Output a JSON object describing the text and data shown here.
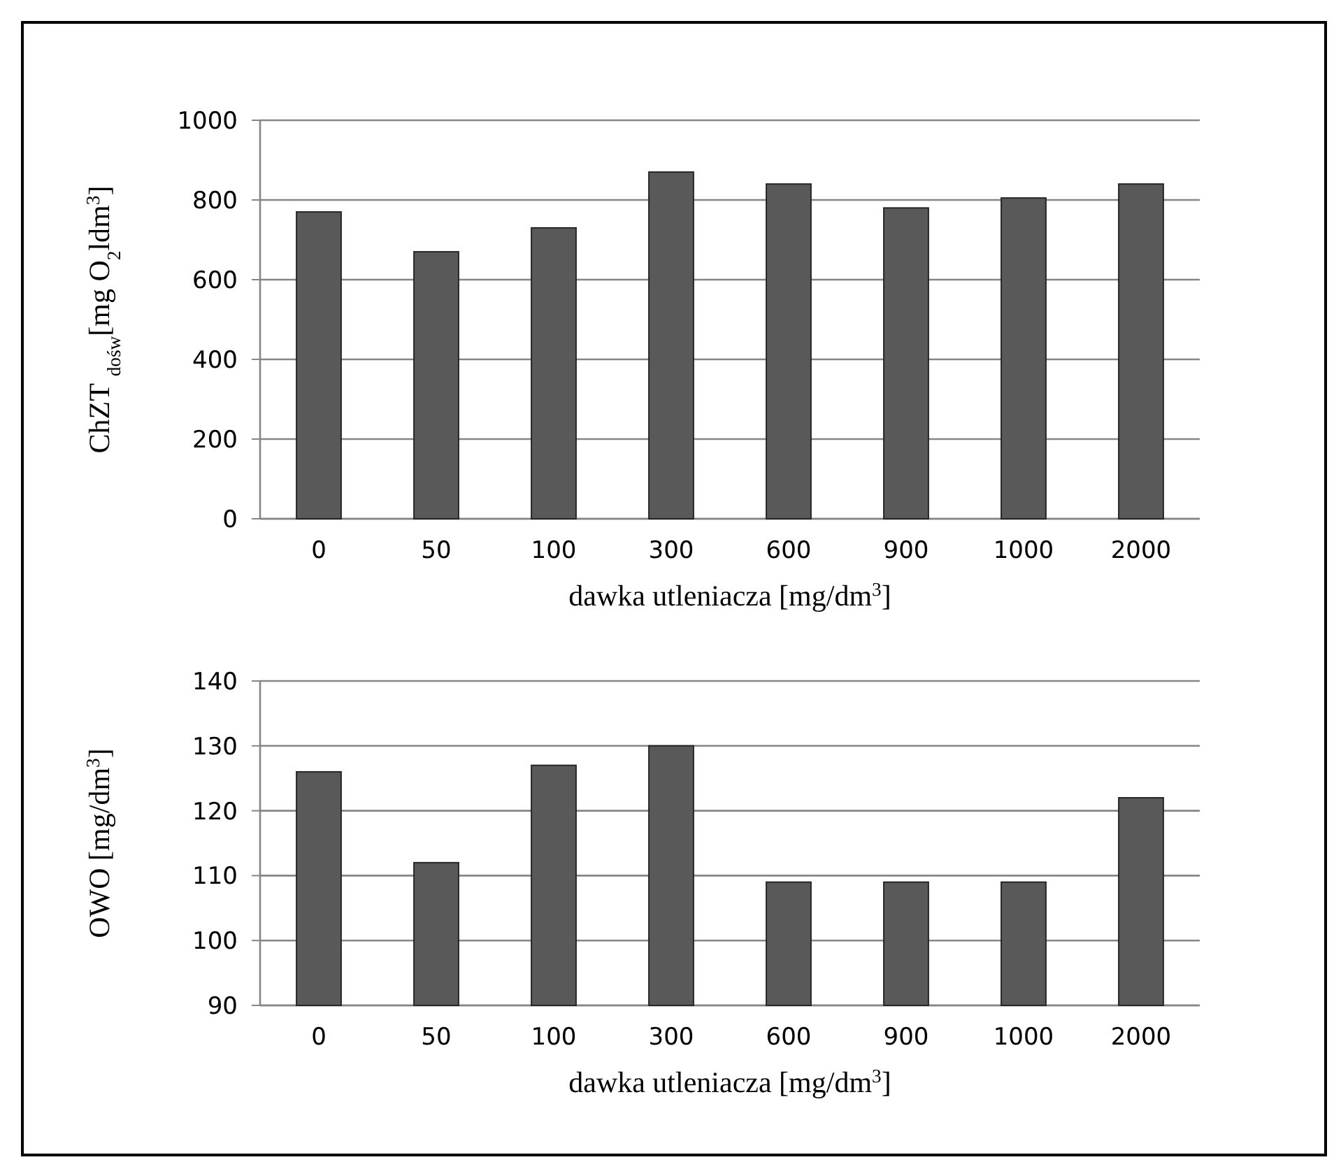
{
  "chart_data": [
    {
      "type": "bar",
      "categories": [
        "0",
        "50",
        "100",
        "300",
        "600",
        "900",
        "1000",
        "2000"
      ],
      "values": [
        770,
        670,
        730,
        870,
        840,
        780,
        805,
        840
      ],
      "color": "#595959",
      "ylim": [
        0,
        1000
      ],
      "yticks": [
        0,
        200,
        400,
        600,
        800,
        1000
      ],
      "grid": "y",
      "xlabel": "dawka utleniacza [mg/dm$^{3}$]",
      "ylabel": "ChZT $_{dośw}$[mg O$_{2}$ldm$^{3}$]"
    },
    {
      "type": "bar",
      "categories": [
        "0",
        "50",
        "100",
        "300",
        "600",
        "900",
        "1000",
        "2000"
      ],
      "values": [
        126,
        112,
        127,
        130,
        109,
        109,
        109,
        122
      ],
      "color": "#595959",
      "ylim": [
        90,
        140
      ],
      "yticks": [
        90,
        100,
        110,
        120,
        130,
        140
      ],
      "grid": "y",
      "xlabel": "dawka utleniacza [mg/dm$^{3}$]",
      "ylabel": "OWO [mg/dm$^{3}$]"
    }
  ]
}
